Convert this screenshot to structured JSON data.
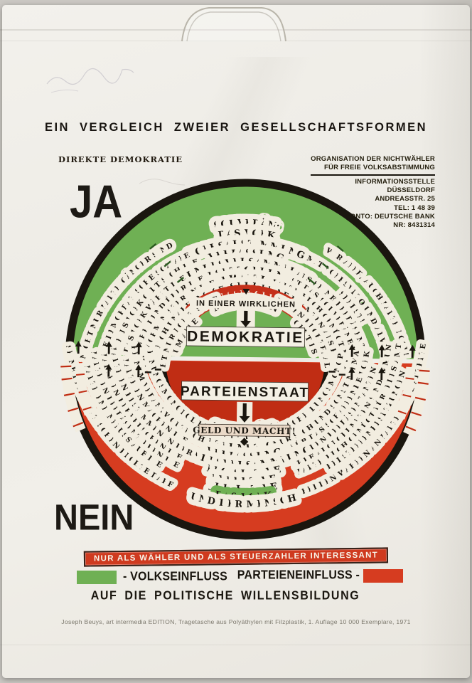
{
  "colors": {
    "green": "#6fb054",
    "red": "#d63c20",
    "red_deep": "#c02d14",
    "band": "#f2ede0",
    "ink": "#1a160f"
  },
  "header": {
    "title": "EIN VERGLEICH ZWEIER GESELLSCHAFTSFORMEN",
    "left_heading": "DIREKTE DEMOKRATIE",
    "yes": "JA",
    "no": "NEIN",
    "org": {
      "line1": "ORGANISATION DER NICHTWÄHLER",
      "line2": "FÜR FREIE VOLKSABSTIMMUNG",
      "address": [
        "INFORMATIONSSTELLE",
        "DÜSSELDORF",
        "ANDREASSTR. 25",
        "TEL: 1 48 39",
        "KONTO: DEUTSCHE BANK",
        "NR: 8431314"
      ]
    }
  },
  "wheel": {
    "top_half": {
      "rings": [
        {
          "center": [
            "SOUVERÄN:",
            "DAS VOLK"
          ],
          "left": "NICHT NUR PARTEIGÄNGER SIND",
          "right": "WIR ALLE, AUCH PARTEILOSE!"
        },
        {
          "center": [
            "VOLKSABSTIMMUNG"
          ],
          "left": "FREIE DEMOKRATISCHE SOZIALE",
          "right": "MIT VOLKSVETO UND ABWAHL!"
        },
        {
          "center": [
            "VERFASSUNG"
          ],
          "left": "EIN FREIES VOLK GIBT SICH DIE",
          "right": "SELBST!"
        },
        {
          "center": [
            "BUNDESVERSAMMLUNG"
          ],
          "left": "DAS VOLK WÄHLT DIE",
          "right": "ALS SEINE REPRÄSENTANZ"
        },
        {
          "center": [
            "GESETZGEBUNG"
          ],
          "left": "ENTSCHEIDEND ÜBER DIE",
          "right": "IST DAS SOUVERÄNE VOLK"
        },
        {
          "center": [
            "VERWALTUNG"
          ],
          "left": "NUR FACHMINISTER IN DIE",
          "right": "PARTEIBUCH GENÜGT NICHT!"
        },
        {
          "center": [
            "RECHTSPRECHUNG"
          ],
          "left": "PARTEILICH UNABHÄNGIGE",
          "right": "KEINE BEAMTEN ALS RICHTER"
        },
        {
          "center": [
            "INTERESSENGRUPPEN"
          ],
          "left": "NICHT NUR POLITISCHE",
          "right": "HABEN RECHTE, ALLE!",
          "highlight": "red",
          "highlight_line": 0
        },
        {
          "center": [
            "MENSCHEN"
          ],
          "left": "UM ALLE",
          "right": "GEHT ES"
        }
      ],
      "hub_context": "IN EINER WIRKLICHEN",
      "hub_word": "DEMOKRATIE"
    },
    "bottom_half": {
      "hub_word": "PARTEIENSTAAT",
      "hub_context": "GELD UND MACHT!",
      "rings": [
        {
          "center": [
            "SOUVERÄN:",
            "PARTEIEN"
          ],
          "left": "MEINUNGSMONOPOL DER",
          "right": "ENTSCHEIDUNGSMONOPOL"
        },
        {
          "center": [
            "HAUPTFUNKTIONÄRE"
          ],
          "left": "KEINEM VERANTWORTLICH",
          "right": "NUR SICH UND SONST NIEMAND"
        },
        {
          "center": [
            "VERFASSUNG"
          ],
          "left": "PARTEIEN MACHEN DIE",
          "right": "FÜR DAS SCHAFFENDE VOLK"
        },
        {
          "center": [
            "BUNDESVERSAMMLUNG"
          ],
          "left": "PARTEIEN BESTIMMEN IN DER",
          "right": "DEN REPRÄSENTANTEN"
        },
        {
          "center": [
            "LEGISLATIVE"
          ],
          "left": "PARTEIEN BEHERRSCHEN DIE",
          "right": "IHRE ABGEORDNETEN SIND IMMUN"
        },
        {
          "center": [
            "EXEKUTIVE"
          ],
          "left": "PARTEIEN REPRÄSENTIEREN DIE",
          "right": "PARTEIBUCH GENÜGT FÜR JEDES AMT"
        },
        {
          "center": [
            "JUDIKATIVE"
          ],
          "left": "PARTEIENEINFLUSS AUF DIE",
          "right": "BEI STELLENBESETZUNGEN"
        },
        {
          "center": [
            "DAS VOLK",
            "UND DER MENSCH"
          ],
          "left": "SEINE DEMOKRATISCHEN RECHTE DARF",
          "right": "BEI DEN WAHLEN AN PARTEIISCHE ABTRETEN",
          "highlight": "green",
          "highlight_line": 0
        }
      ]
    }
  },
  "banner": "NUR ALS WÄHLER UND ALS STEUERZAHLER INTERESSANT",
  "legend": {
    "green_label": "- VOLKSEINFLUSS",
    "red_label": "PARTEIENEINFLUSS -",
    "caption": "AUF DIE POLITISCHE WILLENSBILDUNG"
  },
  "footer": "Joseph Beuys, art intermedia EDITION, Tragetasche aus Polyäthylen mit Filzplastik, 1. Auflage 10 000 Exemplare, 1971"
}
